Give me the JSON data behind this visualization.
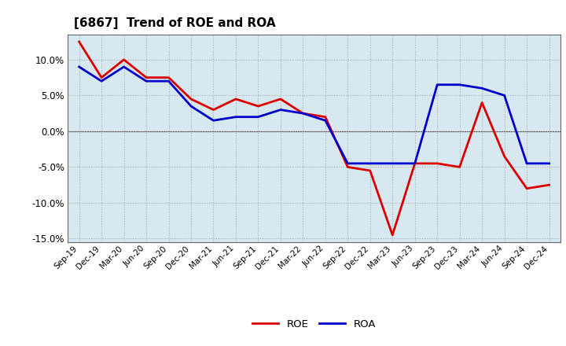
{
  "title": "[6867]  Trend of ROE and ROA",
  "labels": [
    "Sep-19",
    "Dec-19",
    "Mar-20",
    "Jun-20",
    "Sep-20",
    "Dec-20",
    "Mar-21",
    "Jun-21",
    "Sep-21",
    "Dec-21",
    "Mar-22",
    "Jun-22",
    "Sep-22",
    "Dec-22",
    "Mar-23",
    "Jun-23",
    "Sep-23",
    "Dec-23",
    "Mar-24",
    "Jun-24",
    "Sep-24",
    "Dec-24"
  ],
  "ROE": [
    12.5,
    7.5,
    10.0,
    7.5,
    7.5,
    4.5,
    3.0,
    4.5,
    3.5,
    4.5,
    2.5,
    2.0,
    -5.0,
    -5.5,
    -14.5,
    -4.5,
    -4.5,
    -5.0,
    4.0,
    -3.5,
    -8.0,
    -7.5
  ],
  "ROA": [
    9.0,
    7.0,
    9.0,
    7.0,
    7.0,
    3.5,
    1.5,
    2.0,
    2.0,
    3.0,
    2.5,
    1.5,
    -4.5,
    -4.5,
    -4.5,
    -4.5,
    6.5,
    6.5,
    6.0,
    5.0,
    -4.5,
    -4.5
  ],
  "roe_color": "#dd0000",
  "roa_color": "#0000cc",
  "ylim": [
    -15.5,
    13.5
  ],
  "yticks": [
    -15.0,
    -10.0,
    -5.0,
    0.0,
    5.0,
    10.0
  ],
  "plot_bg_color": "#d8e8f0",
  "fig_bg_color": "#ffffff",
  "grid_color": "#aaaaaa",
  "zero_line_color": "#555555",
  "line_width": 2.0
}
